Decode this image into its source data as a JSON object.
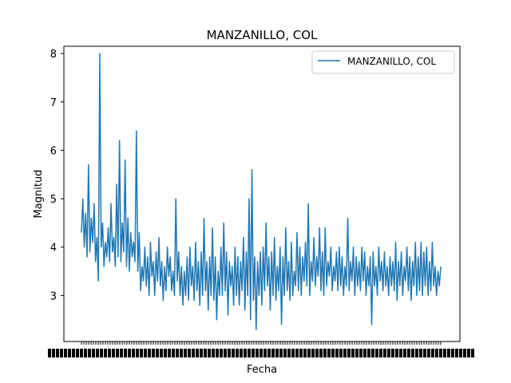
{
  "chart_data": {
    "type": "line",
    "title": "MANZANILLO, COL",
    "xlabel": "Fecha",
    "ylabel": "Magnitud",
    "ylim": [
      2.05,
      8.15
    ],
    "yticks": [
      3,
      4,
      5,
      6,
      7,
      8
    ],
    "x_tick_labels_note": "dense overlapping date labels (illegible)",
    "legend_position": "top-right",
    "grid": false,
    "series": [
      {
        "name": "MANZANILLO, COL",
        "color": "#1f77b4",
        "values": [
          4.3,
          5.0,
          4.0,
          4.7,
          3.8,
          5.7,
          3.9,
          4.6,
          4.1,
          4.9,
          3.7,
          4.2,
          3.3,
          8.0,
          4.0,
          4.5,
          3.6,
          4.1,
          3.8,
          4.4,
          3.7,
          4.9,
          3.9,
          4.2,
          3.6,
          5.3,
          3.8,
          6.2,
          3.7,
          4.5,
          3.9,
          5.8,
          3.6,
          4.6,
          3.5,
          4.3,
          3.8,
          4.1,
          3.7,
          6.4,
          3.5,
          4.3,
          3.1,
          3.6,
          3.3,
          4.0,
          3.2,
          3.8,
          3.0,
          4.1,
          3.4,
          3.7,
          3.0,
          3.9,
          3.3,
          4.2,
          3.2,
          3.7,
          2.9,
          3.6,
          3.1,
          4.0,
          3.4,
          3.8,
          3.1,
          3.5,
          3.0,
          5.0,
          3.3,
          3.9,
          3.0,
          3.6,
          2.8,
          3.5,
          3.0,
          3.8,
          2.9,
          4.0,
          3.2,
          3.6,
          2.9,
          4.1,
          3.1,
          3.7,
          2.8,
          3.9,
          3.0,
          4.6,
          3.1,
          3.7,
          2.7,
          3.8,
          3.0,
          4.4,
          2.9,
          3.8,
          2.5,
          3.5,
          3.0,
          4.0,
          3.0,
          4.5,
          3.1,
          3.9,
          2.6,
          3.7,
          3.2,
          3.6,
          2.8,
          4.0,
          3.0,
          3.8,
          2.8,
          3.7,
          3.1,
          4.2,
          2.7,
          3.9,
          3.0,
          5.0,
          2.5,
          5.6,
          2.9,
          3.8,
          2.3,
          3.7,
          3.0,
          3.9,
          2.8,
          4.0,
          3.1,
          4.5,
          3.2,
          3.8,
          2.7,
          3.9,
          3.0,
          4.2,
          2.9,
          3.6,
          3.1,
          4.0,
          2.4,
          3.8,
          3.0,
          4.4,
          3.1,
          3.7,
          2.9,
          4.1,
          3.0,
          3.5,
          3.2,
          4.3,
          3.1,
          4.0,
          3.0,
          3.8,
          3.3,
          4.1,
          3.2,
          4.9,
          3.0,
          3.7,
          3.3,
          4.2,
          3.2,
          3.8,
          3.4,
          4.4,
          3.1,
          3.9,
          3.0,
          4.4,
          3.2,
          3.7,
          3.4,
          4.0,
          3.1,
          3.6,
          3.3,
          3.9,
          3.1,
          4.0,
          3.2,
          3.8,
          3.0,
          3.6,
          3.2,
          4.6,
          3.1,
          3.7,
          3.3,
          4.0,
          3.0,
          3.8,
          3.2,
          3.7,
          3.1,
          4.0,
          3.3,
          3.9,
          3.0,
          3.6,
          3.2,
          3.8,
          2.4,
          3.9,
          3.2,
          3.6,
          3.0,
          4.0,
          3.3,
          3.7,
          3.1,
          3.9,
          3.2,
          3.6,
          3.0,
          3.8,
          3.2,
          3.7,
          3.1,
          4.1,
          2.9,
          3.7,
          3.2,
          3.9,
          3.0,
          3.6,
          3.3,
          4.0,
          3.1,
          3.8,
          2.9,
          3.7,
          3.2,
          4.1,
          3.0,
          3.8,
          3.1,
          4.1,
          3.0,
          3.9,
          3.2,
          4.0,
          3.0,
          3.7,
          3.1,
          4.1,
          3.2,
          3.6,
          3.0,
          3.5,
          3.2,
          3.6
        ]
      }
    ]
  }
}
